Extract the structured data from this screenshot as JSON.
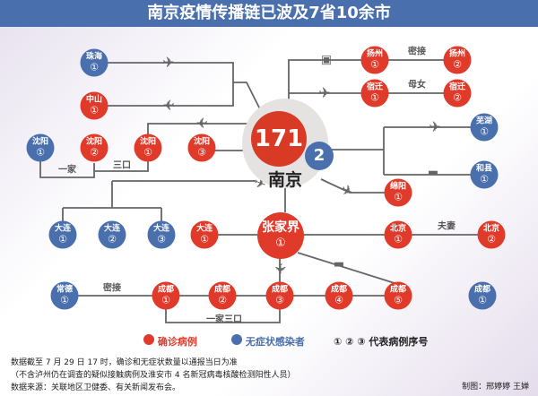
{
  "title": "南京疫情传播链已波及7省10余市",
  "center": {
    "city": "南京",
    "confirmed": "171",
    "asymptomatic": "2"
  },
  "hub": {
    "city": "张家界",
    "num": "①"
  },
  "nodes": [
    {
      "city": "珠海",
      "num": "①",
      "type": "asymptomatic"
    },
    {
      "city": "中山",
      "num": "①",
      "type": "confirmed"
    },
    {
      "city": "沈阳",
      "num": "①",
      "type": "asymptomatic"
    },
    {
      "city": "沈阳",
      "num": "②",
      "type": "confirmed"
    },
    {
      "city": "沈阳",
      "num": "①",
      "type": "confirmed"
    },
    {
      "city": "沈阳",
      "num": "③",
      "type": "confirmed"
    },
    {
      "city": "扬州",
      "num": "①",
      "type": "confirmed"
    },
    {
      "city": "扬州",
      "num": "②",
      "type": "confirmed"
    },
    {
      "city": "宿迁",
      "num": "①",
      "type": "confirmed"
    },
    {
      "city": "宿迁",
      "num": "②",
      "type": "confirmed"
    },
    {
      "city": "芜湖",
      "num": "①",
      "type": "asymptomatic"
    },
    {
      "city": "和县",
      "num": "①",
      "type": "asymptomatic"
    },
    {
      "city": "绵阳",
      "num": "①",
      "type": "confirmed"
    },
    {
      "city": "大连",
      "num": "①",
      "type": "asymptomatic"
    },
    {
      "city": "大连",
      "num": "②",
      "type": "asymptomatic"
    },
    {
      "city": "大连",
      "num": "③",
      "type": "asymptomatic"
    },
    {
      "city": "大连",
      "num": "①",
      "type": "confirmed"
    },
    {
      "city": "北京",
      "num": "①",
      "type": "confirmed"
    },
    {
      "city": "北京",
      "num": "②",
      "type": "confirmed"
    },
    {
      "city": "常德",
      "num": "①",
      "type": "asymptomatic"
    },
    {
      "city": "成都",
      "num": "①",
      "type": "confirmed"
    },
    {
      "city": "成都",
      "num": "②",
      "type": "confirmed"
    },
    {
      "city": "成都",
      "num": "③",
      "type": "confirmed"
    },
    {
      "city": "成都",
      "num": "④",
      "type": "confirmed"
    },
    {
      "city": "成都",
      "num": "⑤",
      "type": "confirmed"
    },
    {
      "city": "成都",
      "num": "①",
      "type": "asymptomatic"
    }
  ],
  "relations": {
    "shenyang_family": "一家",
    "shenyang_three": "三口",
    "yangzhou": "密接",
    "suqian": "母女",
    "beijing": "夫妻",
    "changde": "密接",
    "chengdu": "一家三口"
  },
  "icons": {
    "plane": "plane-icon",
    "car": "car-icon"
  },
  "legend": {
    "confirmed": "确诊病例",
    "asymptomatic": "无症状感染者",
    "order": "① ② ③ 代表病例序号"
  },
  "colors": {
    "confirmed": "#e03a2a",
    "asymptomatic": "#4a6fad",
    "title_bar": "#4a6fad"
  },
  "notes": [
    "数据截至 7 月 29 日 17 时，确诊和无症状数量以通报当日为准",
    "（不含泸州仍在调查的疑似接触病例及淮安市 4 名新冠病毒核酸检测阳性人员）",
    "数据来源：关联地区卫健委、有关新闻发布会。"
  ],
  "credit": "制图：邢婷婷 王婵"
}
